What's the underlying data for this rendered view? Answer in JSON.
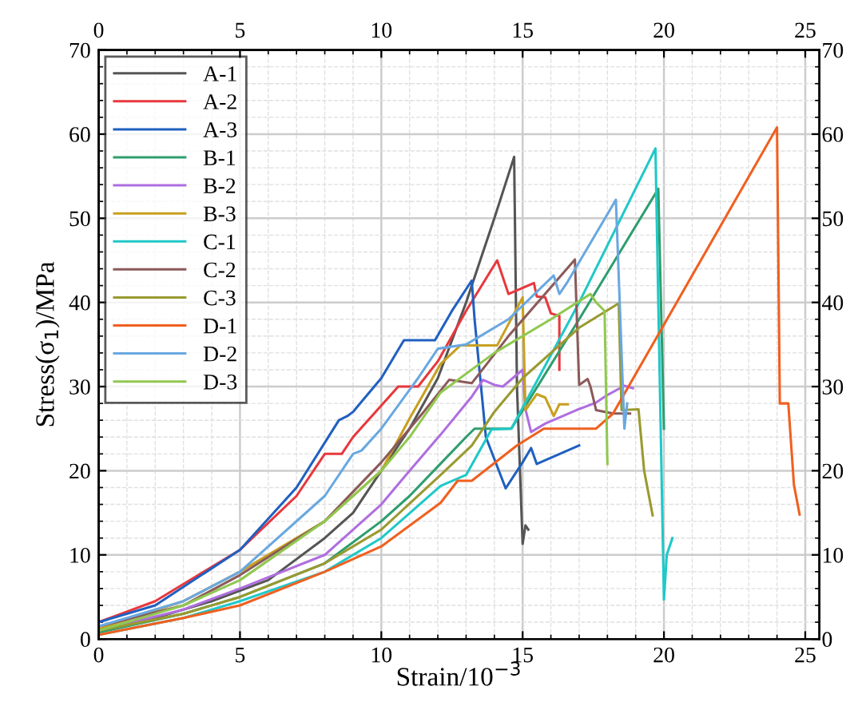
{
  "chart_data": {
    "type": "line",
    "xlabel": "Strain/10$^{−3}$",
    "ylabel": "Stress(σ$_{1}$)/MPa",
    "xlim": [
      0,
      25.5
    ],
    "xticks": [
      0,
      5,
      10,
      15,
      20,
      25
    ],
    "ylim": [
      0,
      70
    ],
    "yticks": [
      0,
      10,
      20,
      30,
      40,
      50,
      60,
      70
    ],
    "x2lim": [
      0,
      25.5
    ],
    "x2ticks": [
      0,
      5,
      10,
      15,
      20,
      25
    ],
    "y2lim": [
      0,
      70
    ],
    "y2ticks": [
      0,
      10,
      20,
      30,
      40,
      50,
      60,
      70
    ],
    "grid": true,
    "legend": "top left",
    "marker": "none",
    "line_style": "solid",
    "series": [
      {
        "name": "A-1",
        "color": "#555555",
        "x": [
          0,
          2,
          4,
          6,
          8,
          9,
          10,
          11,
          12,
          13,
          14,
          14.7,
          14.8,
          15.0,
          15.1,
          15.2
        ],
        "values": [
          1,
          2.5,
          4.5,
          7,
          12,
          15,
          20,
          25,
          31,
          40,
          50,
          57.3,
          30,
          11.3,
          13.5,
          13
        ]
      },
      {
        "name": "A-2",
        "color": "#e8383d",
        "x": [
          0,
          2,
          5,
          7,
          8,
          8.6,
          9,
          10.6,
          11.3,
          12,
          13,
          14.1,
          14.5,
          15.4,
          15.5,
          15.8,
          16.0,
          16.3,
          16.3
        ],
        "values": [
          2,
          4.5,
          10.6,
          17,
          22,
          22,
          24,
          30,
          30,
          33,
          39,
          45,
          41,
          42.3,
          40.7,
          40.6,
          38.7,
          38.4,
          32
        ]
      },
      {
        "name": "A-3",
        "color": "#2060c0",
        "x": [
          0,
          2,
          5,
          7,
          8.5,
          8.8,
          9,
          10,
          10.8,
          11.9,
          12.5,
          13.2,
          13.3,
          13.7,
          14.4,
          15.0,
          15.3,
          15.5,
          17.0
        ],
        "values": [
          2,
          4,
          10.6,
          18,
          26,
          26.5,
          27,
          31,
          35.5,
          35.5,
          39,
          42.6,
          38,
          24,
          17.9,
          21,
          22.7,
          20.8,
          23
        ]
      },
      {
        "name": "B-1",
        "color": "#2e9e6e",
        "x": [
          0,
          3,
          5,
          8,
          10,
          11,
          12,
          13,
          13.3,
          14.6,
          17,
          19.8,
          20.0
        ],
        "values": [
          0.8,
          3,
          5,
          9,
          14,
          17,
          20.5,
          24,
          25,
          25,
          38,
          53.5,
          25
        ]
      },
      {
        "name": "B-2",
        "color": "#b06ee0",
        "x": [
          0,
          3,
          5,
          8,
          10,
          11,
          12.1,
          13.2,
          13.6,
          14.0,
          14.3,
          15.0,
          15.1,
          15.3,
          15.8,
          16.9,
          17.6,
          18.0,
          18.6,
          18.9
        ],
        "values": [
          1,
          3.5,
          6,
          10,
          16,
          20,
          24.3,
          28.8,
          30.8,
          30.2,
          30,
          32,
          27.3,
          24.6,
          25.6,
          27.2,
          28.1,
          29,
          30.1,
          29.8
        ]
      },
      {
        "name": "B-3",
        "color": "#c8a020",
        "x": [
          0,
          3,
          5,
          8,
          10,
          11,
          12.1,
          12.8,
          14.1,
          15.0,
          15.1,
          15.5,
          15.8,
          16.1,
          16.3,
          16.6
        ],
        "values": [
          1.2,
          4.5,
          8,
          14,
          20,
          26.2,
          32.7,
          34.9,
          34.9,
          40.6,
          27.2,
          29.1,
          28.7,
          26.5,
          27.9,
          27.9
        ]
      },
      {
        "name": "C-1",
        "color": "#20c8c8",
        "x": [
          0,
          3,
          5,
          8,
          10,
          12.1,
          13.0,
          13.9,
          14.6,
          15.0,
          17,
          19.7,
          19.8,
          20.0,
          20.1,
          20.3
        ],
        "values": [
          0.5,
          2.5,
          4.5,
          8,
          12,
          18.2,
          19.5,
          24.9,
          25,
          27.5,
          40,
          58.3,
          40,
          4.7,
          10,
          12
        ]
      },
      {
        "name": "C-2",
        "color": "#8b5a5a",
        "x": [
          0,
          3,
          5,
          8,
          10,
          11,
          11.5,
          12.4,
          13.2,
          14.5,
          16.85,
          17.0,
          17.3,
          17.4,
          17.6,
          18.2,
          18.8
        ],
        "values": [
          1.5,
          4,
          7.6,
          14,
          21,
          25,
          27,
          30.8,
          30.4,
          36,
          45.1,
          30.2,
          30.9,
          30,
          27.2,
          26.8,
          26.8
        ]
      },
      {
        "name": "C-3",
        "color": "#9a9a30",
        "x": [
          0,
          3,
          5,
          8,
          10,
          12.1,
          13.2,
          14,
          15,
          16,
          17,
          18.4,
          18.5,
          19.1,
          19.3,
          19.6
        ],
        "values": [
          1,
          3,
          5,
          9,
          13,
          19.5,
          23,
          27,
          31,
          34,
          37,
          39.9,
          27.2,
          27.3,
          20,
          14.7
        ]
      },
      {
        "name": "D-1",
        "color": "#f06020",
        "x": [
          0,
          3,
          5,
          8,
          10,
          12.1,
          12.7,
          13.2,
          14.8,
          15.75,
          17.6,
          18.2,
          24.0,
          24.1,
          24.4,
          24.6,
          24.8
        ],
        "values": [
          0.5,
          2.5,
          4,
          8,
          11,
          16.2,
          18.8,
          18.8,
          23,
          25,
          25,
          26.8,
          60.8,
          28,
          28,
          18.3,
          14.8
        ]
      },
      {
        "name": "D-2",
        "color": "#6aa8e0",
        "x": [
          0,
          3,
          5,
          8,
          9,
          9.3,
          10,
          11.3,
          12,
          13,
          13.5,
          14.5,
          16.1,
          16.3,
          16.6,
          18.3,
          18.6,
          18.7
        ],
        "values": [
          1.5,
          4.5,
          8,
          17,
          22,
          22.4,
          25,
          31,
          34.5,
          35,
          36,
          38,
          43.2,
          41,
          42.5,
          52.2,
          25,
          28
        ]
      },
      {
        "name": "D-3",
        "color": "#90c850",
        "x": [
          0,
          3,
          5,
          8,
          10,
          11,
          12.1,
          14,
          16,
          17.4,
          17.6,
          17.9,
          18.0
        ],
        "values": [
          1,
          4,
          7,
          14,
          20,
          24,
          29.3,
          34,
          38,
          41,
          40,
          39,
          20.8
        ]
      }
    ]
  }
}
